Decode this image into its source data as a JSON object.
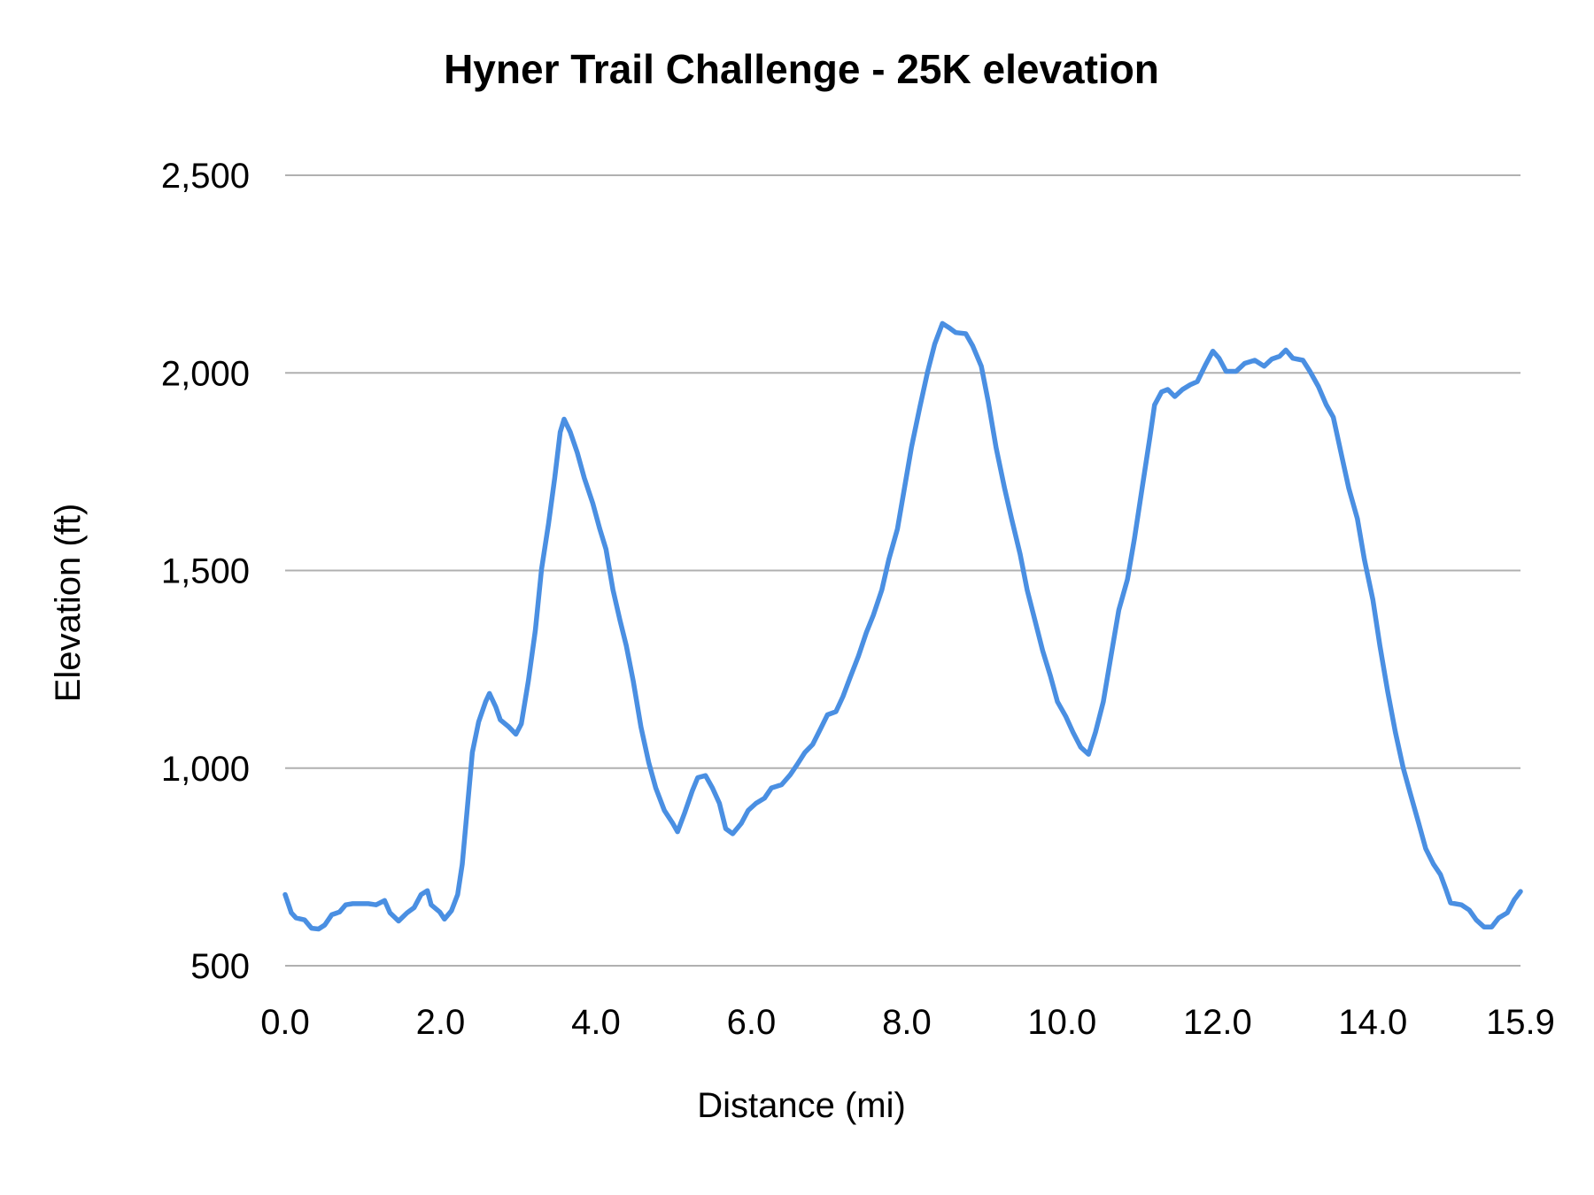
{
  "chart_data": {
    "type": "line",
    "title": "Hyner Trail Challenge - 25K elevation",
    "xlabel": "Distance (mi)",
    "ylabel": "Elevation (ft)",
    "xlim": [
      0,
      15.9
    ],
    "ylim": [
      500,
      2500
    ],
    "x_ticks": [
      "0.0",
      "2.0",
      "4.0",
      "6.0",
      "8.0",
      "10.0",
      "12.0",
      "14.0",
      "15.9"
    ],
    "x_tick_values": [
      0,
      2,
      4,
      6,
      8,
      10,
      12,
      14,
      15.9
    ],
    "y_ticks": [
      "500",
      "1,000",
      "1,500",
      "2,000",
      "2,500"
    ],
    "y_tick_values": [
      500,
      1000,
      1500,
      2000,
      2500
    ],
    "grid": "horizontal",
    "line_color": "#4a8fe2",
    "series": [
      {
        "x": [
          0,
          0.08,
          0.14,
          0.25,
          0.34,
          0.43,
          0.51,
          0.6,
          0.7,
          0.78,
          0.87,
          1.07,
          1.17,
          1.28,
          1.35,
          1.46,
          1.57,
          1.66,
          1.75,
          1.83,
          1.88,
          1.99,
          2.05,
          2.14,
          2.22,
          2.28,
          2.35,
          2.41,
          2.49,
          2.58,
          2.63,
          2.71,
          2.77,
          2.88,
          2.97,
          3.04,
          3.13,
          3.22,
          3.3,
          3.39,
          3.47,
          3.54,
          3.59,
          3.67,
          3.76,
          3.85,
          3.96,
          4.05,
          4.13,
          4.22,
          4.31,
          4.39,
          4.48,
          4.58,
          4.68,
          4.77,
          4.88,
          4.99,
          5.05,
          5.14,
          5.24,
          5.31,
          5.41,
          5.5,
          5.59,
          5.67,
          5.76,
          5.87,
          5.96,
          6.06,
          6.17,
          6.26,
          6.39,
          6.5,
          6.59,
          6.69,
          6.79,
          6.89,
          6.98,
          7.09,
          7.18,
          7.27,
          7.38,
          7.48,
          7.57,
          7.68,
          7.77,
          7.88,
          7.97,
          8.06,
          8.17,
          8.27,
          8.36,
          8.46,
          8.54,
          8.63,
          8.76,
          8.85,
          8.96,
          9.05,
          9.15,
          9.26,
          9.35,
          9.46,
          9.55,
          9.65,
          9.75,
          9.85,
          9.94,
          10.05,
          10.14,
          10.24,
          10.34,
          10.43,
          10.53,
          10.63,
          10.73,
          10.84,
          10.93,
          11.03,
          11.13,
          11.19,
          11.28,
          11.36,
          11.45,
          11.55,
          11.65,
          11.74,
          11.85,
          11.94,
          12.02,
          12.11,
          12.24,
          12.35,
          12.48,
          12.6,
          12.7,
          12.8,
          12.88,
          12.97,
          13.1,
          13.19,
          13.3,
          13.4,
          13.49,
          13.59,
          13.69,
          13.8,
          13.89,
          14.0,
          14.09,
          14.19,
          14.29,
          14.39,
          14.48,
          14.59,
          14.68,
          14.78,
          14.87,
          14.94,
          15.0,
          15.14,
          15.24,
          15.33,
          15.43,
          15.53,
          15.62,
          15.73,
          15.82,
          15.9
        ],
        "values": [
          680,
          634,
          621,
          616,
          595,
          593,
          603,
          629,
          636,
          654,
          657,
          657,
          654,
          665,
          634,
          613,
          634,
          647,
          680,
          690,
          654,
          636,
          618,
          639,
          680,
          757,
          911,
          1040,
          1117,
          1168,
          1189,
          1155,
          1122,
          1104,
          1086,
          1112,
          1220,
          1348,
          1503,
          1618,
          1734,
          1850,
          1883,
          1850,
          1798,
          1734,
          1670,
          1605,
          1554,
          1451,
          1374,
          1310,
          1220,
          1104,
          1014,
          950,
          893,
          860,
          839,
          886,
          942,
          976,
          981,
          950,
          911,
          847,
          834,
          860,
          893,
          911,
          924,
          950,
          958,
          983,
          1009,
          1040,
          1060,
          1099,
          1135,
          1143,
          1181,
          1228,
          1284,
          1343,
          1387,
          1451,
          1528,
          1605,
          1708,
          1811,
          1914,
          2004,
          2073,
          2125,
          2115,
          2102,
          2099,
          2068,
          2017,
          1927,
          1811,
          1708,
          1631,
          1541,
          1451,
          1374,
          1297,
          1233,
          1168,
          1130,
          1091,
          1053,
          1035,
          1091,
          1168,
          1284,
          1400,
          1477,
          1580,
          1708,
          1837,
          1919,
          1952,
          1958,
          1940,
          1958,
          1970,
          1978,
          2022,
          2055,
          2037,
          2004,
          2004,
          2024,
          2032,
          2017,
          2035,
          2042,
          2058,
          2037,
          2032,
          2004,
          1965,
          1919,
          1888,
          1798,
          1708,
          1631,
          1528,
          1426,
          1310,
          1194,
          1091,
          1001,
          937,
          860,
          796,
          757,
          731,
          693,
          659,
          654,
          641,
          616,
          598,
          598,
          621,
          634,
          667,
          688
        ]
      }
    ]
  }
}
